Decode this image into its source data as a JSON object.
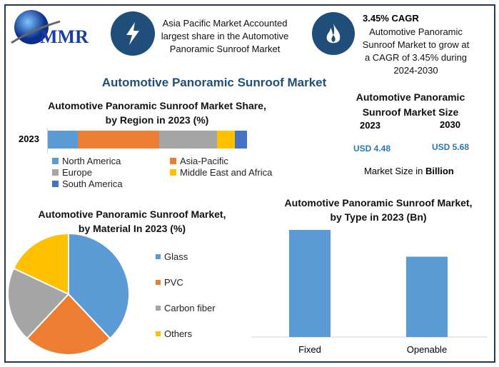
{
  "header": {
    "logo_text": "MMR",
    "highlight1": [
      "Asia Pacific Market Accounted",
      "largest share in the Automotive",
      "Panoramic Sunroof Market"
    ],
    "cagr_title": "3.45% CAGR",
    "highlight2": [
      "Automotive Panoramic",
      "Sunroof Market to grow at",
      "a CAGR of 3.45% during",
      "2024-2030"
    ],
    "icons": [
      "lightning-icon",
      "flame-icon"
    ]
  },
  "main_title": "Automotive Panoramic Sunroof Market",
  "market_size": {
    "title": [
      "Automotive Panoramic",
      "Sunroof Market Size"
    ],
    "year1": "2023",
    "year2": "2030",
    "value1": "USD 4.48",
    "value2": "USD 5.68",
    "note_prefix": "Market Size in ",
    "note_unit": "Billion"
  },
  "chart_data": [
    {
      "type": "bar",
      "orientation": "horizontal-stacked",
      "title": [
        "Automotive Panoramic Sunroof Market Share,",
        "by Region in 2023 (%)"
      ],
      "categories": [
        "2023"
      ],
      "series": [
        {
          "name": "North America",
          "values": [
            15
          ],
          "color": "#5b9bd5"
        },
        {
          "name": "Asia-Pacific",
          "values": [
            41
          ],
          "color": "#ed7d31"
        },
        {
          "name": "Europe",
          "values": [
            29
          ],
          "color": "#a5a5a5"
        },
        {
          "name": "Middle East and Africa",
          "values": [
            9
          ],
          "color": "#ffc000"
        },
        {
          "name": "South America",
          "values": [
            6
          ],
          "color": "#4472c4"
        }
      ],
      "legend": "bottom"
    },
    {
      "type": "pie",
      "title": [
        "Automotive Panoramic Sunroof Market,",
        "by Material In 2023 (%)"
      ],
      "labels": [
        "Glass",
        "PVC",
        "Carbon fiber",
        "Others"
      ],
      "values": [
        38,
        24,
        20,
        18
      ],
      "colors": [
        "#5b9bd5",
        "#ed7d31",
        "#a5a5a5",
        "#ffc000"
      ],
      "legend": "right"
    },
    {
      "type": "bar",
      "title": [
        "Automotive Panoramic Sunroof Market,",
        "by Type in 2023 (Bn)"
      ],
      "categories": [
        "Fixed",
        "Openable"
      ],
      "values": [
        2.56,
        1.92
      ],
      "color": "#5b9bd5",
      "ylim": [
        0,
        2.56
      ]
    }
  ]
}
